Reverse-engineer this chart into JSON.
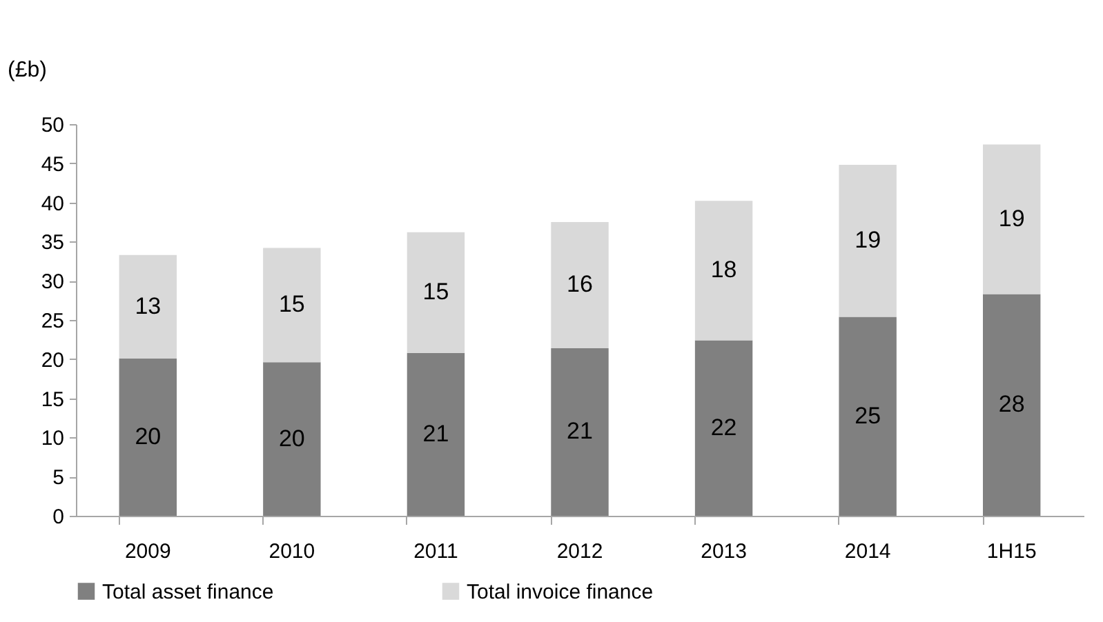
{
  "chart_data": {
    "type": "bar",
    "stacked": true,
    "ylabel": "(£b)",
    "categories": [
      "2009",
      "2010",
      "2011",
      "2012",
      "2013",
      "2014",
      "1H15"
    ],
    "series": [
      {
        "name": "Total asset finance",
        "color": "#808080",
        "values": [
          20.1,
          19.6,
          20.8,
          21.4,
          22.4,
          25.4,
          28.3
        ],
        "value_labels": [
          "20",
          "20",
          "21",
          "21",
          "22",
          "25",
          "28"
        ]
      },
      {
        "name": "Total invoice finance",
        "color": "#d9d9d9",
        "values": [
          13.2,
          14.6,
          15.4,
          16.1,
          17.8,
          19.4,
          19.1
        ],
        "value_labels": [
          "13",
          "15",
          "15",
          "16",
          "18",
          "19",
          "19"
        ]
      }
    ],
    "ylim": [
      0,
      50
    ],
    "yticks": [
      0,
      5,
      10,
      15,
      20,
      25,
      30,
      35,
      40,
      45,
      50
    ],
    "grid": false,
    "legend": "bottom"
  }
}
